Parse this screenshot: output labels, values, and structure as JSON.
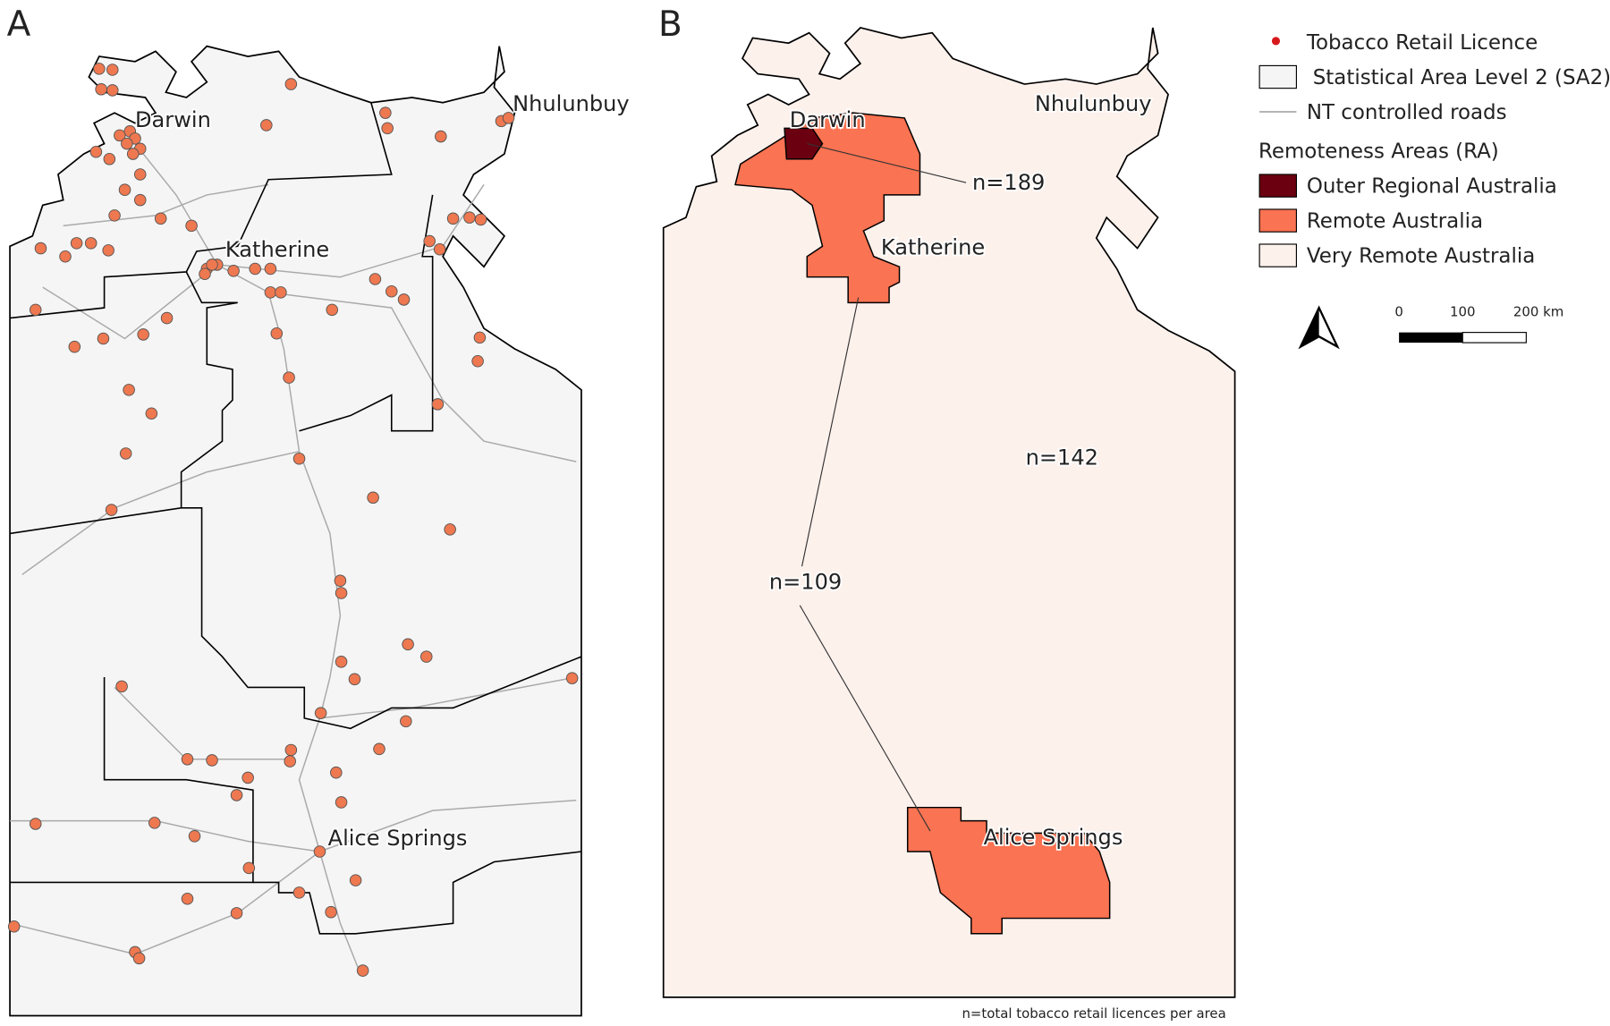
{
  "panels": [
    {
      "label": "A",
      "places": [
        "Darwin",
        "Nhulunbuy",
        "Katherine",
        "Alice Springs"
      ]
    },
    {
      "label": "B",
      "places": [
        "Darwin",
        "Nhulunbuy",
        "Katherine",
        "Alice Springs"
      ],
      "annotations": [
        "n=189",
        "n=142",
        "n=109"
      ]
    }
  ],
  "legend": {
    "items": [
      "Tobacco Retail Licence",
      "Statistical Area Level 2 (SA2)",
      "NT controlled roads"
    ],
    "section": "Remoteness Areas (RA)",
    "classes": [
      "Outer Regional Australia",
      "Remote Australia",
      "Very Remote Australia"
    ]
  },
  "scale_bar": [
    "0",
    "100",
    "200 km"
  ],
  "footnote": "n=total tobacco retail licences per area"
}
